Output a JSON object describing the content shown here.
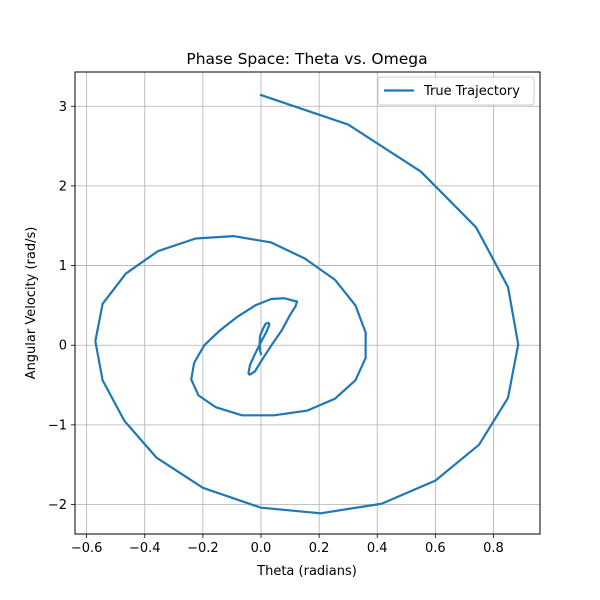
{
  "chart_data": {
    "type": "line",
    "title": "Phase Space: Theta vs. Omega",
    "xlabel": "Theta (radians)",
    "ylabel": "Angular Velocity (rad/s)",
    "xlim": [
      -0.64,
      0.96
    ],
    "ylim": [
      -2.37,
      3.43
    ],
    "xticks": [
      -0.6,
      -0.4,
      -0.2,
      0.0,
      0.2,
      0.4,
      0.6,
      0.8
    ],
    "xtick_labels": [
      "−0.6",
      "−0.4",
      "−0.2",
      "0.0",
      "0.2",
      "0.4",
      "0.6",
      "0.8"
    ],
    "yticks": [
      -2,
      -1,
      0,
      1,
      2,
      3
    ],
    "ytick_labels": [
      "−2",
      "−1",
      "0",
      "1",
      "2",
      "3"
    ],
    "grid": true,
    "legend_position": "top-right",
    "series": [
      {
        "name": "True Trajectory",
        "color": "#1f77b4",
        "x": [
          0.0,
          0.3,
          0.55,
          0.74,
          0.85,
          0.885,
          0.85,
          0.75,
          0.6,
          0.415,
          0.205,
          0.0,
          -0.2,
          -0.36,
          -0.47,
          -0.545,
          -0.57,
          -0.545,
          -0.465,
          -0.355,
          -0.225,
          -0.095,
          0.035,
          0.15,
          0.255,
          0.325,
          0.36,
          0.36,
          0.325,
          0.255,
          0.16,
          0.045,
          -0.065,
          -0.155,
          -0.215,
          -0.24,
          -0.23,
          -0.195,
          -0.14,
          -0.08,
          -0.02,
          0.035,
          0.08,
          0.11,
          0.124,
          0.119,
          0.1,
          0.072,
          0.038,
          0.004,
          -0.021,
          -0.039,
          -0.043,
          -0.038,
          -0.022,
          0.0,
          0.019,
          0.029,
          0.026,
          0.016,
          0.006,
          -0.003,
          -0.005,
          -0.003,
          0.0
        ],
        "y": [
          3.14,
          2.77,
          2.18,
          1.48,
          0.73,
          0.01,
          -0.66,
          -1.25,
          -1.7,
          -1.99,
          -2.11,
          -2.04,
          -1.79,
          -1.41,
          -0.95,
          -0.44,
          0.05,
          0.52,
          0.9,
          1.18,
          1.34,
          1.37,
          1.29,
          1.09,
          0.82,
          0.5,
          0.16,
          -0.16,
          -0.44,
          -0.67,
          -0.82,
          -0.88,
          -0.88,
          -0.78,
          -0.63,
          -0.43,
          -0.22,
          0.0,
          0.19,
          0.36,
          0.5,
          0.58,
          0.59,
          0.56,
          0.55,
          0.49,
          0.38,
          0.19,
          0.01,
          -0.18,
          -0.33,
          -0.37,
          -0.35,
          -0.25,
          -0.12,
          0.04,
          0.17,
          0.26,
          0.28,
          0.27,
          0.2,
          0.12,
          0.02,
          -0.07,
          -0.11
        ]
      }
    ]
  }
}
